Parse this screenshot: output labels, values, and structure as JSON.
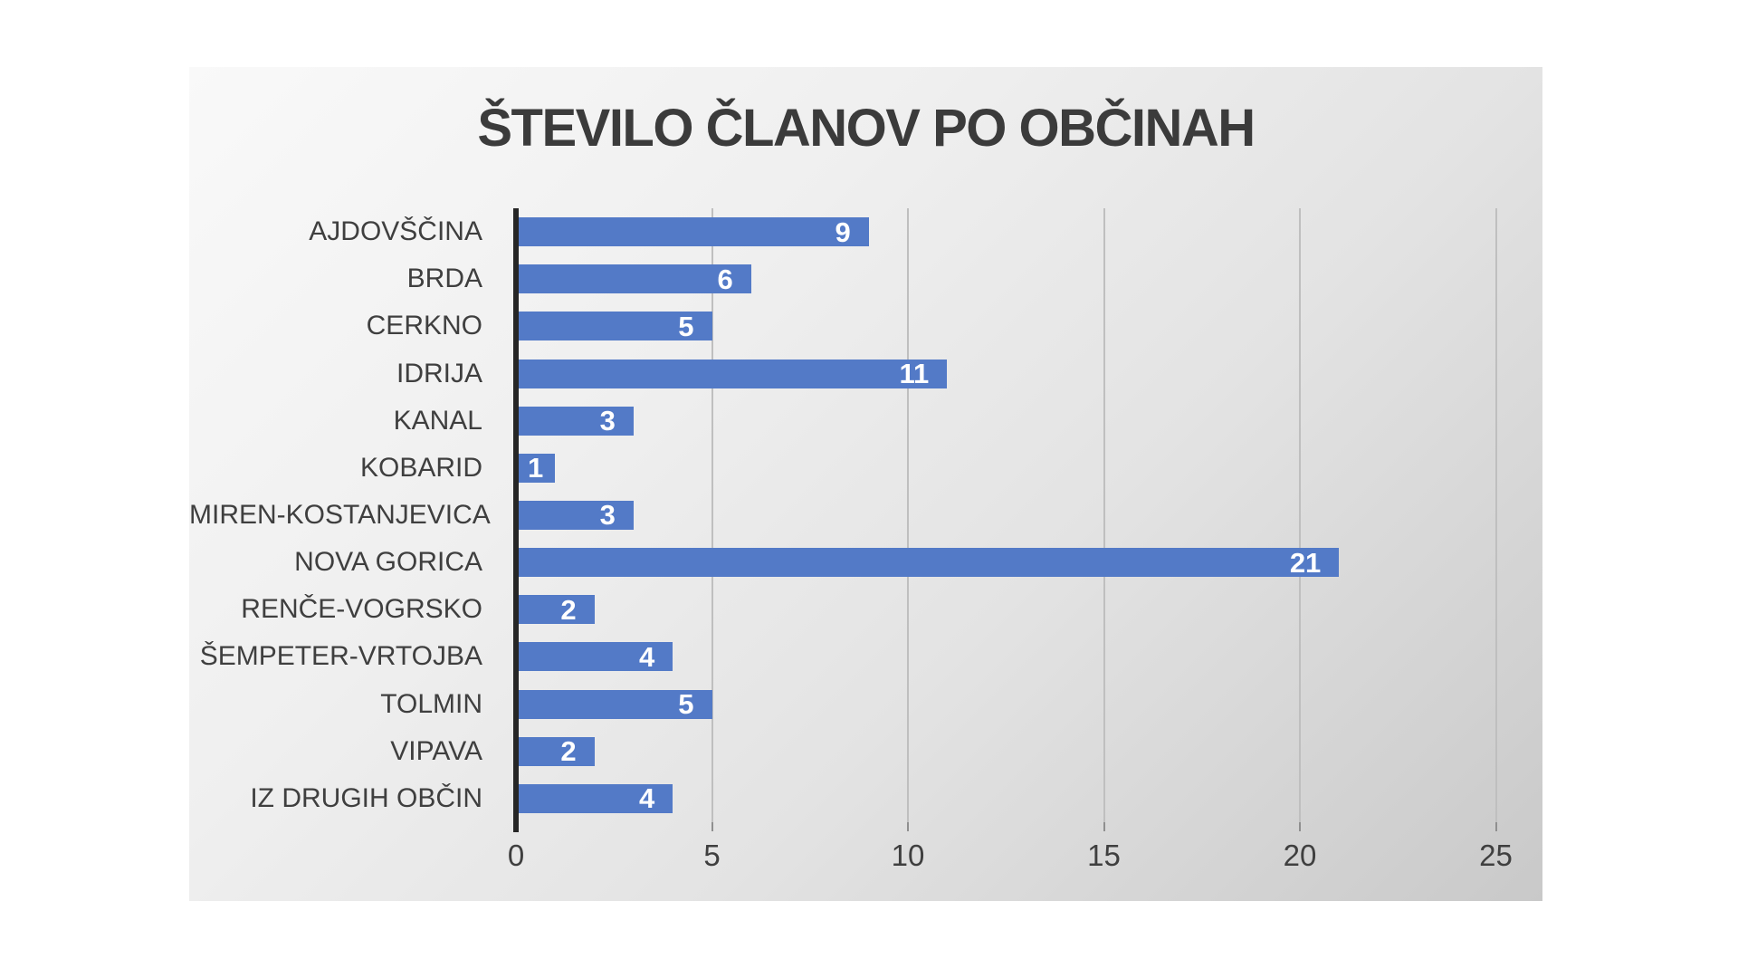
{
  "chart_data": {
    "type": "bar",
    "orientation": "horizontal",
    "title": "ŠTEVILO ČLANOV PO OBČINAH",
    "categories": [
      "AJDOVŠČINA",
      "BRDA",
      "CERKNO",
      "IDRIJA",
      "KANAL",
      "KOBARID",
      "MIREN-KOSTANJEVICA",
      "NOVA GORICA",
      "RENČE-VOGRSKO",
      "ŠEMPETER-VRTOJBA",
      "TOLMIN",
      "VIPAVA",
      "IZ DRUGIH OBČIN"
    ],
    "values": [
      9,
      6,
      5,
      11,
      3,
      1,
      3,
      21,
      2,
      4,
      5,
      2,
      4
    ],
    "data_labels": [
      "9",
      "6",
      "5",
      "11",
      "3",
      "1",
      "3",
      "21",
      "2",
      "4",
      "5",
      "2",
      "4"
    ],
    "xlabel": "",
    "ylabel": "",
    "xlim": [
      0,
      25
    ],
    "xticks": [
      "0",
      "5",
      "10",
      "15",
      "20",
      "25"
    ],
    "grid": "vertical-gridlines-on",
    "legend": "none",
    "colors": {
      "bar": "#537ac7",
      "data_label": "#ffffff",
      "title": "#3b3b3b",
      "axis_text": "#3f3f3f",
      "axis_line": "#262626",
      "gridline": "#bfbfbf"
    }
  }
}
